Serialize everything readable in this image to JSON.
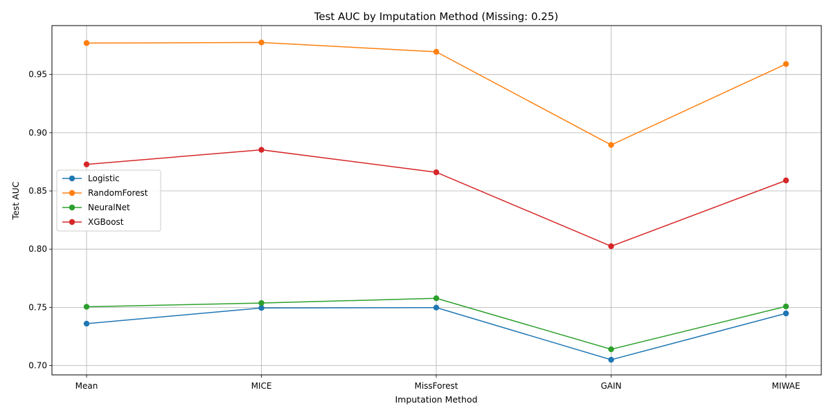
{
  "chart_data": {
    "type": "line",
    "title": "Test AUC by Imputation Method (Missing: 0.25)",
    "xlabel": "Imputation Method",
    "ylabel": "Test AUC",
    "categories": [
      "Mean",
      "MICE",
      "MissForest",
      "GAIN",
      "MIWAE"
    ],
    "ylim": [
      0.692,
      0.992
    ],
    "yticks": [
      0.7,
      0.75,
      0.8,
      0.85,
      0.9,
      0.95
    ],
    "ytick_labels": [
      "0.70",
      "0.75",
      "0.80",
      "0.85",
      "0.90",
      "0.95"
    ],
    "grid": true,
    "legend_position": "center-left",
    "series": [
      {
        "name": "Logistic",
        "color": "#1f77b4",
        "values": [
          0.736,
          0.7495,
          0.7498,
          0.705,
          0.7448
        ]
      },
      {
        "name": "RandomForest",
        "color": "#ff7f0e",
        "values": [
          0.977,
          0.9775,
          0.9695,
          0.8895,
          0.959
        ]
      },
      {
        "name": "NeuralNet",
        "color": "#2ca02c",
        "values": [
          0.7505,
          0.7537,
          0.7578,
          0.714,
          0.7508
        ]
      },
      {
        "name": "XGBoost",
        "color": "#d62728",
        "values": [
          0.8728,
          0.8853,
          0.866,
          0.8025,
          0.859
        ]
      }
    ]
  }
}
